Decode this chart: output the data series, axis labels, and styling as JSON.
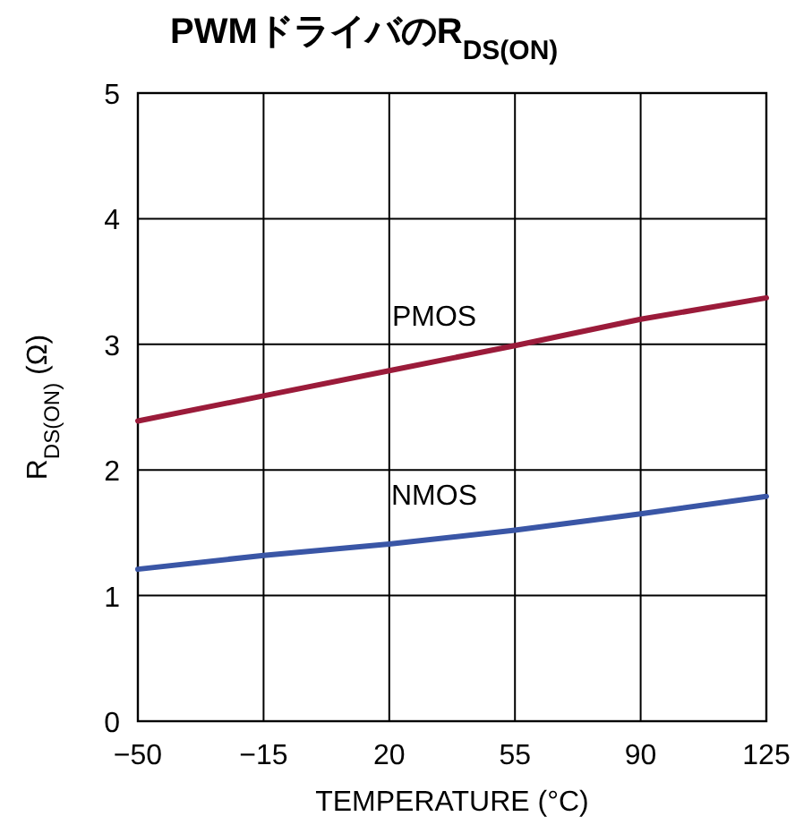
{
  "chart_data": {
    "type": "line",
    "title": "**PWMドライバのR$_{DS(ON)}$**",
    "xlabel": "TEMPERATURE (°C)",
    "ylabel": "R$_{DS(ON)}$ (Ω)",
    "x": [
      -50,
      -15,
      20,
      55,
      90,
      125
    ],
    "series": [
      {
        "name": "PMOS",
        "color": "#9b1b3a",
        "values": [
          2.39,
          2.59,
          2.79,
          2.99,
          3.2,
          3.37
        ]
      },
      {
        "name": "NMOS",
        "color": "#3a56a6",
        "values": [
          1.21,
          1.32,
          1.41,
          1.52,
          1.65,
          1.79
        ]
      }
    ],
    "xlim": [
      -50,
      125
    ],
    "ylim": [
      0,
      5
    ],
    "xticks": [
      {
        "value": -50,
        "label": "−50"
      },
      {
        "value": -15,
        "label": "−15"
      },
      20,
      55,
      90,
      125
    ],
    "yticks": [
      0,
      1,
      2,
      3,
      4,
      5
    ],
    "grid": true,
    "legend": false,
    "marker": "none",
    "line_style": "solid"
  }
}
